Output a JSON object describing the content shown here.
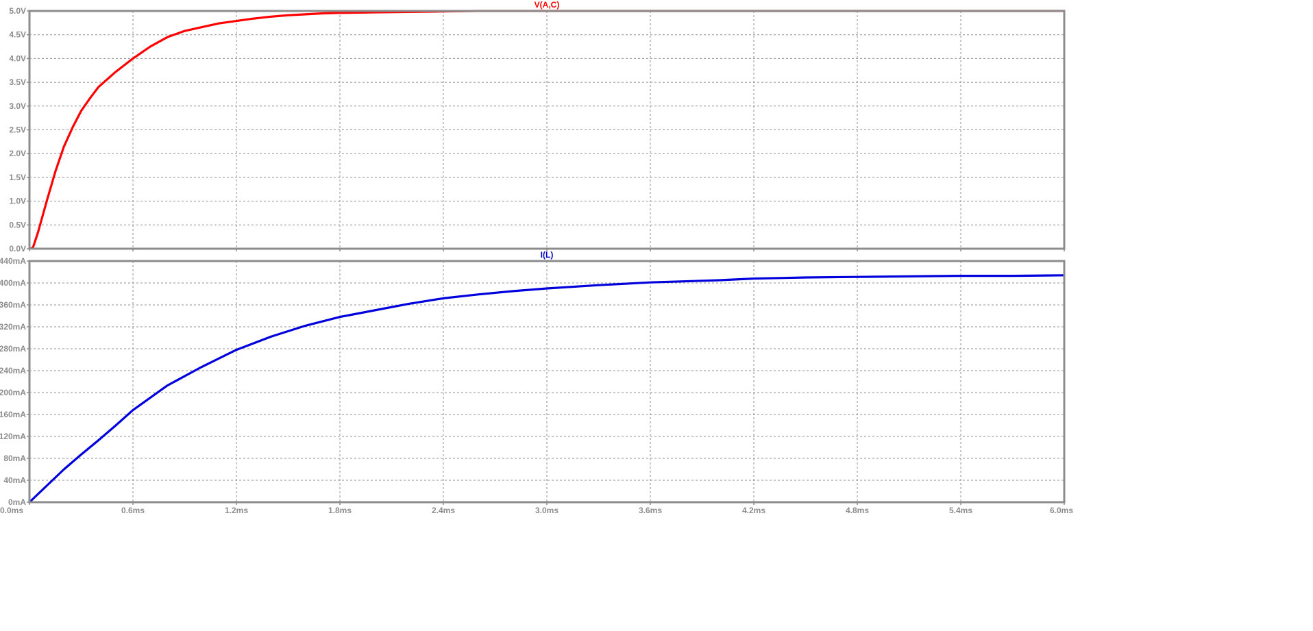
{
  "window": {
    "title": "",
    "background": "#ffffff",
    "grid_color": "#909090",
    "axis_color": "#8c8c8c"
  },
  "chart_data": [
    {
      "type": "line",
      "title": "V(A,C)",
      "title_color": "#ff0000",
      "xlabel": "",
      "ylabel": "",
      "grid": true,
      "x_unit": "ms",
      "y_unit": "V",
      "xlim": [
        0,
        6
      ],
      "ylim": [
        0,
        5
      ],
      "x_ticks": [
        0,
        0.6,
        1.2,
        1.8,
        2.4,
        3.0,
        3.6,
        4.2,
        4.8,
        5.4,
        6.0
      ],
      "y_ticks": [
        0,
        0.5,
        1.0,
        1.5,
        2.0,
        2.5,
        3.0,
        3.5,
        4.0,
        4.5,
        5.0
      ],
      "y_tick_labels": [
        "0.0V",
        "0.5V",
        "1.0V",
        "1.5V",
        "2.0V",
        "2.5V",
        "3.0V",
        "3.5V",
        "4.0V",
        "4.5V",
        "5.0V"
      ],
      "series": [
        {
          "name": "V(A,C)",
          "color": "#ff0000",
          "x": [
            0,
            0.02,
            0.05,
            0.1,
            0.15,
            0.2,
            0.25,
            0.3,
            0.35,
            0.4,
            0.5,
            0.6,
            0.7,
            0.8,
            0.9,
            1.0,
            1.1,
            1.2,
            1.3,
            1.4,
            1.5,
            1.6,
            1.7,
            1.8,
            2.0,
            2.2,
            2.4,
            2.6,
            3.0,
            3.6,
            4.2,
            4.8,
            5.4,
            6.0
          ],
          "y": [
            0,
            0.02,
            0.35,
            1.0,
            1.62,
            2.15,
            2.55,
            2.9,
            3.16,
            3.4,
            3.72,
            4.0,
            4.25,
            4.45,
            4.58,
            4.66,
            4.74,
            4.79,
            4.84,
            4.88,
            4.91,
            4.93,
            4.95,
            4.96,
            4.97,
            4.98,
            4.99,
            5.0,
            5.0,
            5.0,
            5.0,
            5.0,
            5.0,
            5.0
          ]
        }
      ]
    },
    {
      "type": "line",
      "title": "I(L)",
      "title_color": "#0000cc",
      "xlabel": "",
      "ylabel": "",
      "grid": true,
      "x_unit": "ms",
      "y_unit": "mA",
      "xlim": [
        0,
        6
      ],
      "ylim": [
        0,
        440
      ],
      "x_ticks": [
        0,
        0.6,
        1.2,
        1.8,
        2.4,
        3.0,
        3.6,
        4.2,
        4.8,
        5.4,
        6.0
      ],
      "x_tick_labels": [
        "0.0ms",
        "0.6ms",
        "1.2ms",
        "1.8ms",
        "2.4ms",
        "3.0ms",
        "3.6ms",
        "4.2ms",
        "4.8ms",
        "5.4ms",
        "6.0ms"
      ],
      "y_ticks": [
        0,
        40,
        80,
        120,
        160,
        200,
        240,
        280,
        320,
        360,
        400,
        440
      ],
      "y_tick_labels": [
        "0mA",
        "40mA",
        "80mA",
        "120mA",
        "160mA",
        "200mA",
        "240mA",
        "280mA",
        "320mA",
        "360mA",
        "400mA",
        "440mA"
      ],
      "series": [
        {
          "name": "I(L)",
          "color": "#0000dd",
          "x": [
            0,
            0.1,
            0.2,
            0.3,
            0.4,
            0.5,
            0.6,
            0.8,
            1.0,
            1.2,
            1.4,
            1.6,
            1.8,
            2.0,
            2.2,
            2.4,
            2.6,
            2.8,
            3.0,
            3.3,
            3.6,
            4.0,
            4.2,
            4.5,
            4.8,
            5.1,
            5.4,
            5.7,
            6.0
          ],
          "y": [
            0,
            30,
            60,
            87,
            113,
            140,
            168,
            213,
            247,
            278,
            302,
            322,
            338,
            350,
            362,
            372,
            379,
            385,
            390,
            396,
            401,
            405,
            408,
            410,
            411,
            412,
            413,
            413,
            414
          ]
        }
      ]
    }
  ]
}
